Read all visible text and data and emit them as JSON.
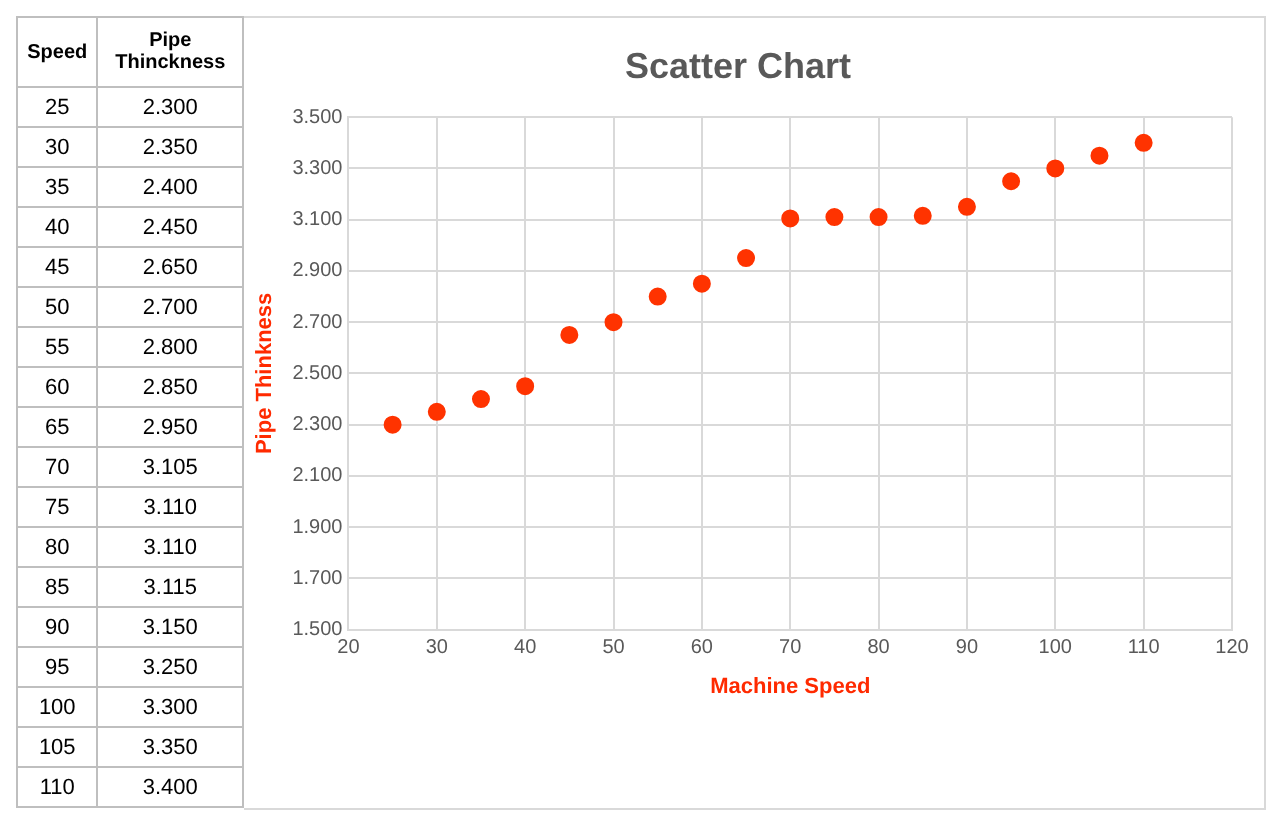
{
  "chart_data": [
    {
      "type": "heatmap",
      "ylabel": "Speed",
      "categories": [
        "Pipe\nThinckness"
      ],
      "y_categories": [
        "25",
        "30",
        "35",
        "40",
        "45",
        "50",
        "55",
        "60",
        "65",
        "70",
        "75",
        "80",
        "85",
        "90",
        "95",
        "100",
        "105",
        "110"
      ],
      "cells": [
        [
          2.3
        ],
        [
          2.35
        ],
        [
          2.4
        ],
        [
          2.45
        ],
        [
          2.65
        ],
        [
          2.7
        ],
        [
          2.8
        ],
        [
          2.85
        ],
        [
          2.95
        ],
        [
          3.105
        ],
        [
          3.11
        ],
        [
          3.11
        ],
        [
          3.115
        ],
        [
          3.15
        ],
        [
          3.25
        ],
        [
          3.3
        ],
        [
          3.35
        ],
        [
          3.4
        ]
      ],
      "cell_labels": [
        [
          "2.300"
        ],
        [
          "2.350"
        ],
        [
          "2.400"
        ],
        [
          "2.450"
        ],
        [
          "2.650"
        ],
        [
          "2.700"
        ],
        [
          "2.800"
        ],
        [
          "2.850"
        ],
        [
          "2.950"
        ],
        [
          "3.105"
        ],
        [
          "3.110"
        ],
        [
          "3.110"
        ],
        [
          "3.115"
        ],
        [
          "3.150"
        ],
        [
          "3.250"
        ],
        [
          "3.300"
        ],
        [
          "3.350"
        ],
        [
          "3.400"
        ]
      ]
    },
    {
      "type": "scatter",
      "title": "Scatter Chart",
      "xlabel": "Machine Speed",
      "ylabel": "Pipe Thinkness",
      "x": [
        25,
        30,
        35,
        40,
        45,
        50,
        55,
        60,
        65,
        70,
        75,
        80,
        85,
        90,
        95,
        100,
        105,
        110
      ],
      "values": [
        2.3,
        2.35,
        2.4,
        2.45,
        2.65,
        2.7,
        2.8,
        2.85,
        2.95,
        3.105,
        3.11,
        3.11,
        3.115,
        3.15,
        3.25,
        3.3,
        3.35,
        3.4
      ],
      "color": "#ff3300",
      "marker": "circle",
      "grid": true,
      "legend": false,
      "xlim": [
        20,
        120
      ],
      "xticks": [
        20,
        30,
        40,
        50,
        60,
        70,
        80,
        90,
        100,
        110,
        120
      ],
      "ylim": [
        1.5,
        3.5
      ],
      "yticks": [
        {
          "value": 1.5,
          "label": "1.500"
        },
        {
          "value": 1.7,
          "label": "1.700"
        },
        {
          "value": 1.9,
          "label": "1.900"
        },
        {
          "value": 2.1,
          "label": "2.100"
        },
        {
          "value": 2.3,
          "label": "2.300"
        },
        {
          "value": 2.5,
          "label": "2.500"
        },
        {
          "value": 2.7,
          "label": "2.700"
        },
        {
          "value": 2.9,
          "label": "2.900"
        },
        {
          "value": 3.1,
          "label": "3.100"
        },
        {
          "value": 3.3,
          "label": "3.300"
        },
        {
          "value": 3.5,
          "label": "3.500"
        }
      ]
    }
  ]
}
